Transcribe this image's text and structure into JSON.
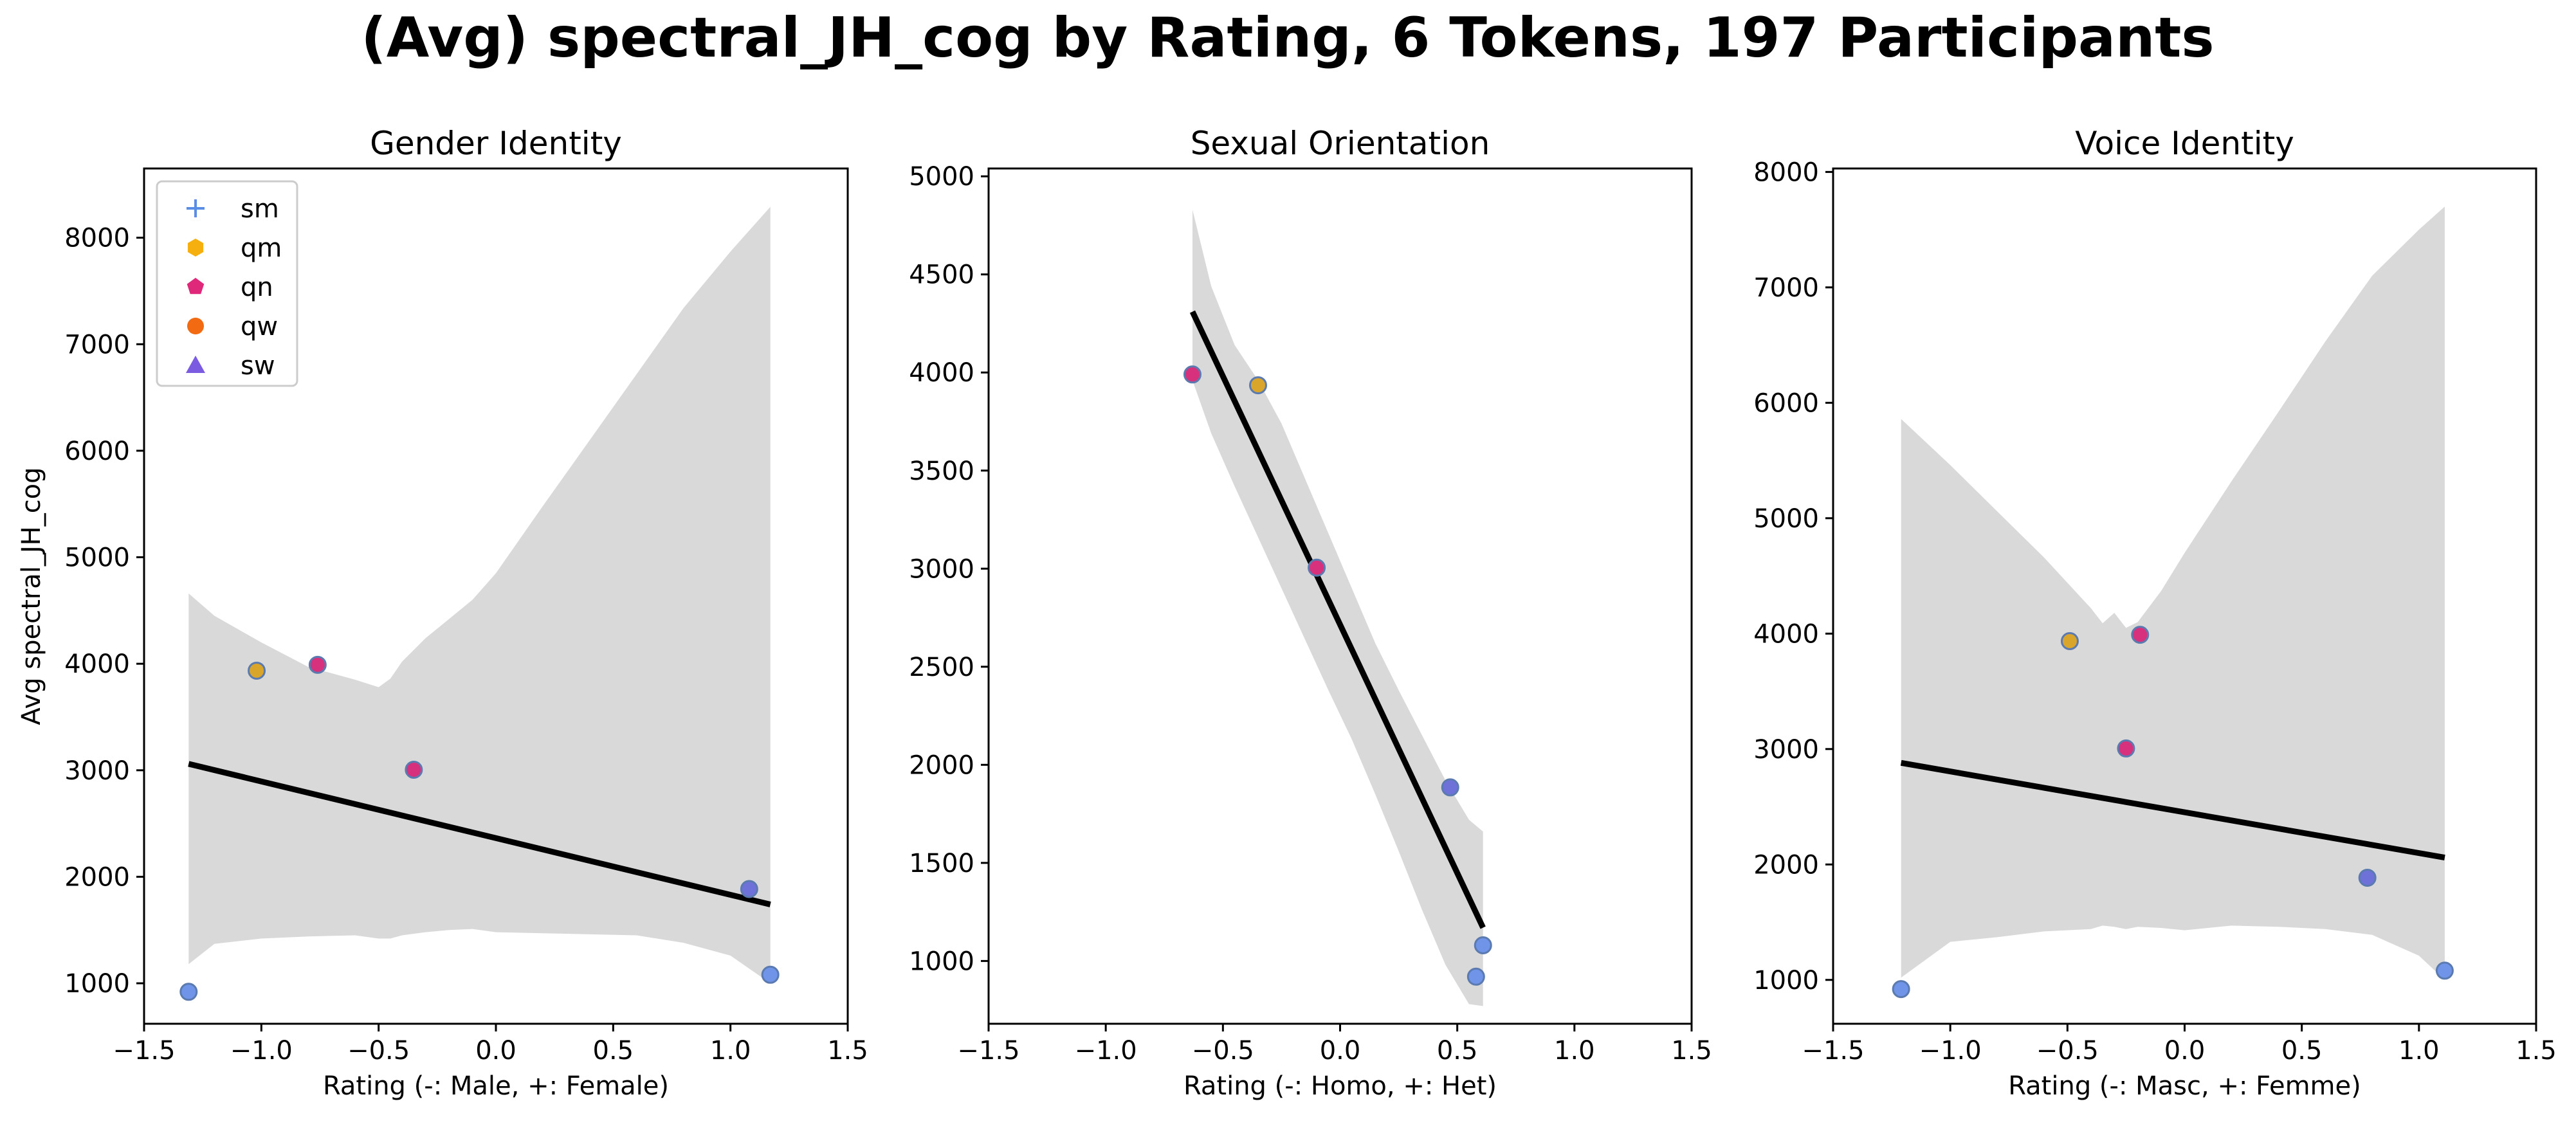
{
  "figure": {
    "title": "(Avg) spectral_JH_cog by Rating, 6 Tokens, 197 Participants"
  },
  "legend": {
    "placement": "upper-left",
    "items": [
      {
        "label": "sm",
        "marker": "plus",
        "color": "#5a8ee6"
      },
      {
        "label": "qm",
        "marker": "hexagon",
        "color": "#f5b010"
      },
      {
        "label": "qn",
        "marker": "pentagon",
        "color": "#e0287a"
      },
      {
        "label": "qw",
        "marker": "circle",
        "color": "#f26a12"
      },
      {
        "label": "sw",
        "marker": "triangle",
        "color": "#7b5ce0"
      }
    ]
  },
  "colors": {
    "point_fill_blue": "#6f94e8",
    "point_fill_orange": "#d9a52a",
    "point_fill_pink": "#d7307c",
    "point_fill_purple": "#6e72d8",
    "point_edge": "#5a7ab0",
    "regression_line": "#000000",
    "confidence_band": "#d9d9d9"
  },
  "chart_data": [
    {
      "type": "scatter",
      "title": "Gender Identity",
      "xlabel": "Rating (-: Male, +: Female)",
      "ylabel": "Avg spectral_JH_cog",
      "xlim": [
        -1.5,
        1.5
      ],
      "ylim": [
        620,
        8650
      ],
      "xticks": [
        -1.5,
        -1.0,
        -0.5,
        0.0,
        0.5,
        1.0,
        1.5
      ],
      "xtick_labels": [
        "−1.5",
        "−1.0",
        "−0.5",
        "0.0",
        "0.5",
        "1.0",
        "1.5"
      ],
      "yticks": [
        1000,
        2000,
        3000,
        4000,
        5000,
        6000,
        7000,
        8000
      ],
      "ytick_labels": [
        "1000",
        "2000",
        "3000",
        "4000",
        "5000",
        "6000",
        "7000",
        "8000"
      ],
      "legend": true,
      "points": [
        {
          "x": -1.31,
          "y": 920,
          "fill": "blue"
        },
        {
          "x": -1.02,
          "y": 3935,
          "fill": "orange"
        },
        {
          "x": -0.76,
          "y": 3990,
          "fill": "pink"
        },
        {
          "x": -0.35,
          "y": 3005,
          "fill": "pink"
        },
        {
          "x": 1.08,
          "y": 1885,
          "fill": "purple"
        },
        {
          "x": 1.17,
          "y": 1080,
          "fill": "blue"
        }
      ],
      "regression": {
        "x": [
          -1.31,
          1.17
        ],
        "y": [
          3060,
          1740
        ]
      },
      "ci_band": {
        "x": [
          -1.31,
          -1.2,
          -1.0,
          -0.8,
          -0.6,
          -0.5,
          -0.45,
          -0.4,
          -0.3,
          -0.2,
          -0.1,
          0.0,
          0.2,
          0.4,
          0.6,
          0.8,
          1.0,
          1.17
        ],
        "upper": [
          4660,
          4450,
          4200,
          3970,
          3850,
          3780,
          3860,
          4020,
          4240,
          4420,
          4600,
          4850,
          5480,
          6100,
          6720,
          7340,
          7870,
          8290
        ],
        "lower": [
          1180,
          1370,
          1420,
          1440,
          1450,
          1420,
          1420,
          1450,
          1480,
          1500,
          1510,
          1480,
          1470,
          1460,
          1450,
          1380,
          1260,
          1000
        ]
      }
    },
    {
      "type": "scatter",
      "title": "Sexual Orientation",
      "xlabel": "Rating (-: Homo, +: Het)",
      "ylabel": "",
      "xlim": [
        -1.5,
        1.5
      ],
      "ylim": [
        680,
        5040
      ],
      "xticks": [
        -1.5,
        -1.0,
        -0.5,
        0.0,
        0.5,
        1.0,
        1.5
      ],
      "xtick_labels": [
        "−1.5",
        "−1.0",
        "−0.5",
        "0.0",
        "0.5",
        "1.0",
        "1.5"
      ],
      "yticks": [
        1000,
        1500,
        2000,
        2500,
        3000,
        3500,
        4000,
        4500,
        5000
      ],
      "ytick_labels": [
        "1000",
        "1500",
        "2000",
        "2500",
        "3000",
        "3500",
        "4000",
        "4500",
        "5000"
      ],
      "legend": false,
      "points": [
        {
          "x": -0.63,
          "y": 3990,
          "fill": "pink"
        },
        {
          "x": -0.35,
          "y": 3935,
          "fill": "orange"
        },
        {
          "x": -0.1,
          "y": 3005,
          "fill": "pink"
        },
        {
          "x": 0.47,
          "y": 1885,
          "fill": "purple"
        },
        {
          "x": 0.58,
          "y": 920,
          "fill": "blue"
        },
        {
          "x": 0.61,
          "y": 1080,
          "fill": "blue"
        }
      ],
      "regression": {
        "x": [
          -0.63,
          0.61
        ],
        "y": [
          4310,
          1170
        ]
      },
      "ci_band": {
        "x": [
          -0.63,
          -0.55,
          -0.45,
          -0.35,
          -0.25,
          -0.15,
          -0.05,
          0.05,
          0.15,
          0.25,
          0.35,
          0.45,
          0.55,
          0.61
        ],
        "upper": [
          4830,
          4440,
          4140,
          3960,
          3740,
          3460,
          3180,
          2900,
          2620,
          2380,
          2150,
          1920,
          1720,
          1660
        ],
        "lower": [
          3960,
          3690,
          3420,
          3160,
          2900,
          2640,
          2380,
          2130,
          1850,
          1560,
          1260,
          980,
          780,
          770
        ]
      }
    },
    {
      "type": "scatter",
      "title": "Voice Identity",
      "xlabel": "Rating (-: Masc, +: Femme)",
      "ylabel": "",
      "xlim": [
        -1.5,
        1.5
      ],
      "ylim": [
        620,
        8030
      ],
      "xticks": [
        -1.5,
        -1.0,
        -0.5,
        0.0,
        0.5,
        1.0,
        1.5
      ],
      "xtick_labels": [
        "−1.5",
        "−1.0",
        "−0.5",
        "0.0",
        "0.5",
        "1.0",
        "1.5"
      ],
      "yticks": [
        1000,
        2000,
        3000,
        4000,
        5000,
        6000,
        7000,
        8000
      ],
      "ytick_labels": [
        "1000",
        "2000",
        "3000",
        "4000",
        "5000",
        "6000",
        "7000",
        "8000"
      ],
      "legend": false,
      "points": [
        {
          "x": -1.21,
          "y": 920,
          "fill": "blue"
        },
        {
          "x": -0.49,
          "y": 3935,
          "fill": "orange"
        },
        {
          "x": -0.25,
          "y": 3005,
          "fill": "pink"
        },
        {
          "x": -0.19,
          "y": 3990,
          "fill": "pink"
        },
        {
          "x": 0.78,
          "y": 1885,
          "fill": "purple"
        },
        {
          "x": 1.11,
          "y": 1080,
          "fill": "blue"
        }
      ],
      "regression": {
        "x": [
          -1.21,
          1.11
        ],
        "y": [
          2880,
          2060
        ]
      },
      "ci_band": {
        "x": [
          -1.21,
          -1.0,
          -0.8,
          -0.6,
          -0.4,
          -0.35,
          -0.3,
          -0.25,
          -0.2,
          -0.1,
          0.0,
          0.2,
          0.4,
          0.6,
          0.8,
          1.0,
          1.11
        ],
        "upper": [
          5860,
          5460,
          5060,
          4660,
          4220,
          4090,
          4180,
          4050,
          4100,
          4370,
          4700,
          5320,
          5920,
          6530,
          7100,
          7500,
          7700
        ],
        "lower": [
          1020,
          1330,
          1370,
          1420,
          1440,
          1470,
          1460,
          1440,
          1460,
          1450,
          1430,
          1470,
          1460,
          1440,
          1390,
          1210,
          1000
        ]
      }
    }
  ]
}
